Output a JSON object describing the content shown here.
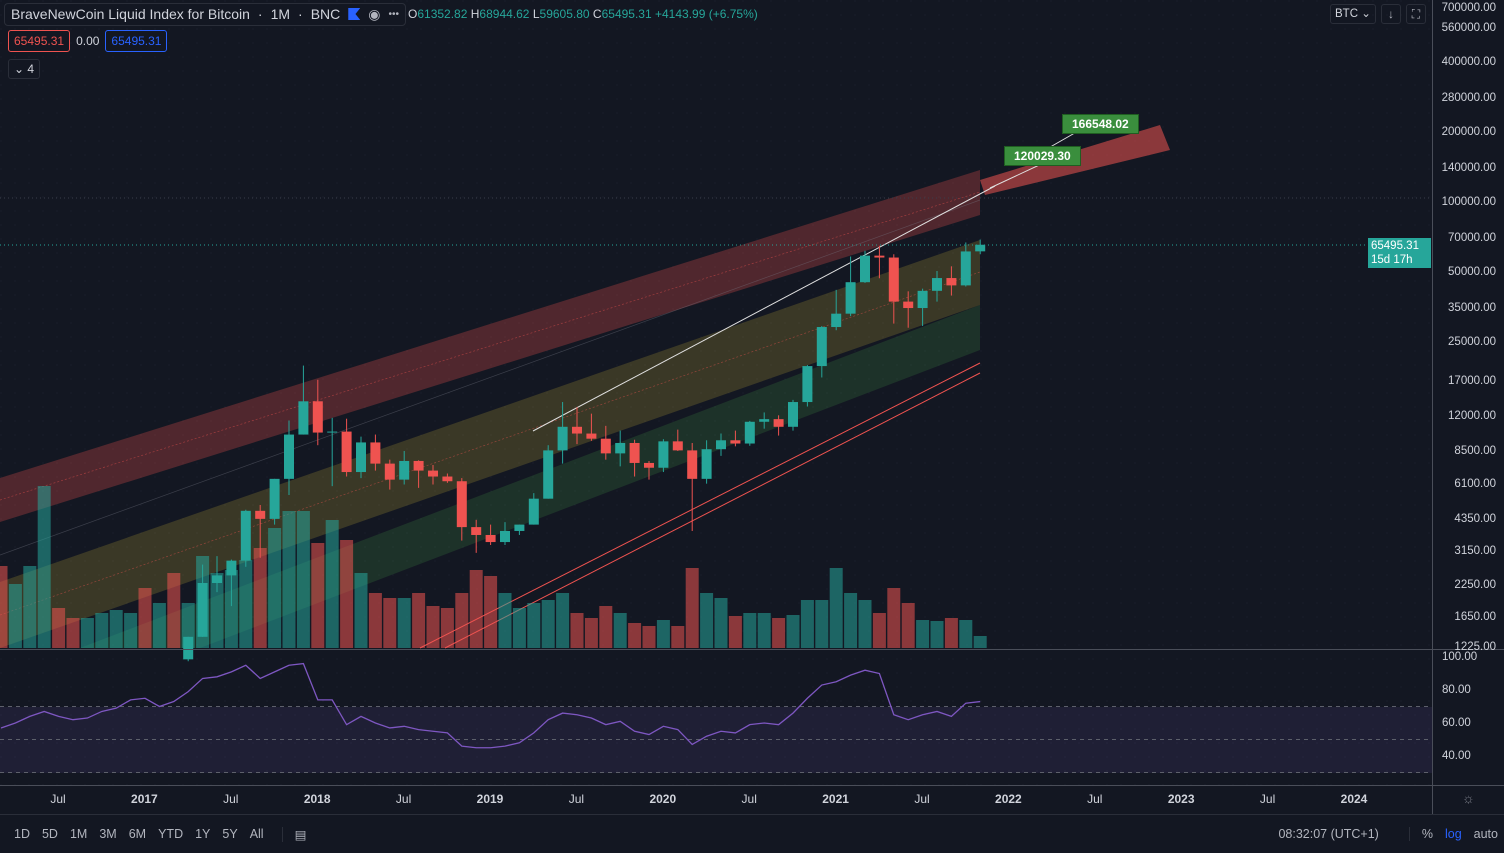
{
  "header": {
    "symbol": "BraveNewCoin Liquid Index for Bitcoin",
    "interval": "1M",
    "exchange": "BNC",
    "open_label": "O",
    "open": "61352.82",
    "high_label": "H",
    "high": "68944.62",
    "low_label": "L",
    "low": "59605.80",
    "close_label": "C",
    "close": "65495.31",
    "change": "+4143.99 (+6.75%)",
    "sep": "·",
    "more_icon": "•••"
  },
  "indicator_row": {
    "value1": "65495.31",
    "value2": "0.00",
    "value3": "65495.31"
  },
  "collapse": {
    "label": "4"
  },
  "currency": "BTC",
  "last_price": {
    "value": "65495.31",
    "countdown": "15d 17h"
  },
  "targets": {
    "t1": "120029.30",
    "t2": "166548.02"
  },
  "price_axis": [
    "700000.00",
    "560000.00",
    "400000.00",
    "280000.00",
    "200000.00",
    "140000.00",
    "100000.00",
    "70000.00",
    "50000.00",
    "35000.00",
    "25000.00",
    "17000.00",
    "12000.00",
    "8500.00",
    "6100.00",
    "4350.00",
    "3150.00",
    "2250.00",
    "1650.00",
    "1225.00"
  ],
  "rsi_axis": [
    "100.00",
    "80.00",
    "60.00",
    "40.00"
  ],
  "time_axis": [
    "Jul",
    "2017",
    "Jul",
    "2018",
    "Jul",
    "2019",
    "Jul",
    "2020",
    "Jul",
    "2021",
    "Jul",
    "2022",
    "Jul",
    "2023",
    "Jul",
    "2024"
  ],
  "bottom": {
    "ranges": [
      "1D",
      "5D",
      "1M",
      "3M",
      "6M",
      "YTD",
      "1Y",
      "5Y",
      "All"
    ],
    "time": "08:32:07 (UTC+1)",
    "percent": "%",
    "log": "log",
    "auto": "auto"
  },
  "colors": {
    "up": "#26a69a",
    "down": "#ef5350",
    "bg": "#131722",
    "rsi": "#7e57c2",
    "accent": "#2962ff"
  },
  "chart_data": {
    "type": "candlestick",
    "scale": "log",
    "ylim": [
      1225,
      700000
    ],
    "start_month": "2016-03",
    "candles_start": "2017-04",
    "ohlc": [
      [
        1080,
        1350,
        1060,
        1350
      ],
      [
        1350,
        2760,
        1350,
        2300
      ],
      [
        2300,
        3000,
        2100,
        2480
      ],
      [
        2480,
        2900,
        1830,
        2870
      ],
      [
        2870,
        4750,
        2700,
        4700
      ],
      [
        4700,
        4980,
        2950,
        4340
      ],
      [
        4340,
        6450,
        4100,
        6450
      ],
      [
        6450,
        11500,
        5500,
        10000
      ],
      [
        10000,
        19800,
        10000,
        13900
      ],
      [
        13900,
        17200,
        9000,
        10200
      ],
      [
        10200,
        11800,
        6000,
        10300
      ],
      [
        10300,
        11700,
        6600,
        6900
      ],
      [
        6900,
        9800,
        6500,
        9250
      ],
      [
        9250,
        10000,
        7000,
        7500
      ],
      [
        7500,
        7800,
        5800,
        6400
      ],
      [
        6400,
        8500,
        6100,
        7700
      ],
      [
        7700,
        7750,
        5900,
        7000
      ],
      [
        7000,
        7400,
        6100,
        6600
      ],
      [
        6600,
        6800,
        6200,
        6300
      ],
      [
        6300,
        6500,
        3500,
        4000
      ],
      [
        4000,
        4300,
        3100,
        3700
      ],
      [
        3700,
        4100,
        3350,
        3450
      ],
      [
        3450,
        4200,
        3350,
        3850
      ],
      [
        3850,
        4100,
        3700,
        4100
      ],
      [
        4100,
        5600,
        4100,
        5300
      ],
      [
        5300,
        9000,
        5300,
        8550
      ],
      [
        8550,
        13800,
        7500,
        10800
      ],
      [
        10800,
        13100,
        9100,
        10100
      ],
      [
        10100,
        12300,
        9400,
        9600
      ],
      [
        9600,
        10900,
        7800,
        8300
      ],
      [
        8300,
        10400,
        7300,
        9200
      ],
      [
        9200,
        9500,
        6600,
        7550
      ],
      [
        7550,
        7700,
        6400,
        7200
      ],
      [
        7200,
        9550,
        6900,
        9350
      ],
      [
        9350,
        10500,
        8500,
        8550
      ],
      [
        8550,
        9200,
        3850,
        6450
      ],
      [
        6450,
        9450,
        6150,
        8650
      ],
      [
        8650,
        10100,
        8100,
        9450
      ],
      [
        9450,
        10400,
        8900,
        9150
      ],
      [
        9150,
        11450,
        8950,
        11350
      ],
      [
        11350,
        12450,
        10600,
        11650
      ],
      [
        11650,
        12100,
        9900,
        10800
      ],
      [
        10800,
        14100,
        10400,
        13800
      ],
      [
        13800,
        19900,
        13200,
        19700
      ],
      [
        19700,
        29300,
        17600,
        29000
      ],
      [
        29000,
        41900,
        28100,
        33100
      ],
      [
        33100,
        58300,
        32300,
        45200
      ],
      [
        45200,
        61700,
        44900,
        58800
      ],
      [
        58800,
        64800,
        47000,
        57700
      ],
      [
        57700,
        59600,
        30000,
        37300
      ],
      [
        37300,
        41300,
        28800,
        35000
      ],
      [
        35000,
        42400,
        29300,
        41500
      ],
      [
        41500,
        50500,
        37300,
        47100
      ],
      [
        47100,
        52900,
        39600,
        43800
      ],
      [
        43800,
        67000,
        43300,
        61300
      ],
      [
        61352.82,
        68944.62,
        59605.8,
        65495.31
      ]
    ],
    "volume_relative": [
      82,
      64,
      82,
      162,
      40,
      30,
      30,
      35,
      38,
      35,
      60,
      45,
      75,
      45,
      92,
      75,
      78,
      88,
      100,
      120,
      137,
      137,
      105,
      128,
      108,
      75,
      55,
      50,
      50,
      55,
      42,
      40,
      55,
      78,
      72,
      55,
      40,
      45,
      48,
      55,
      35,
      30,
      42,
      35,
      25,
      22,
      28,
      22,
      80,
      55,
      50,
      32,
      35,
      35,
      30,
      33,
      48,
      48,
      80,
      55,
      48,
      35,
      60,
      45,
      28,
      27,
      30,
      28,
      12
    ],
    "volume_up_before_candles": [
      false,
      true,
      true,
      true,
      false,
      false,
      true,
      true,
      true,
      true,
      false,
      true,
      false
    ],
    "rsi": [
      57,
      60,
      64,
      67,
      64,
      62,
      63,
      67,
      69,
      74,
      75,
      70,
      73,
      79,
      87,
      88,
      91,
      95,
      87,
      91,
      95,
      96,
      74,
      74,
      59,
      64,
      60,
      57,
      58,
      56,
      55,
      54,
      46,
      45,
      45,
      46,
      48,
      54,
      62,
      66,
      65,
      63,
      59,
      61,
      55,
      53,
      58,
      56,
      47,
      52,
      55,
      54,
      59,
      60,
      59,
      66,
      75,
      83,
      85,
      89,
      92,
      90,
      65,
      62,
      65,
      67,
      64,
      72,
      73
    ],
    "rsi_levels": [
      70,
      50,
      30
    ]
  }
}
